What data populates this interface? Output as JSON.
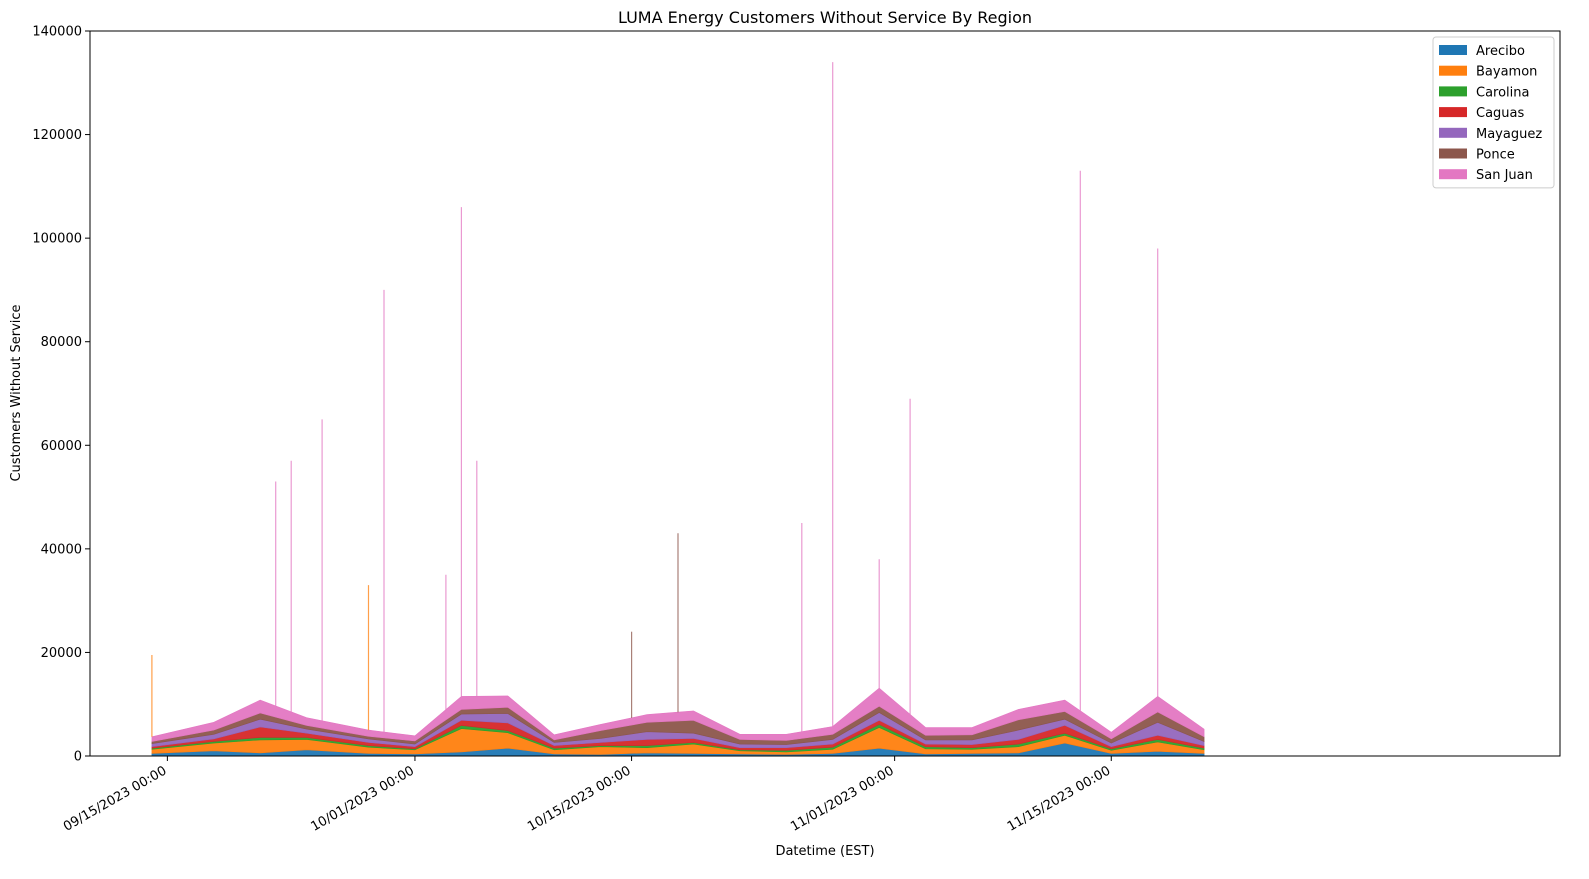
{
  "chart_data": {
    "type": "area",
    "stacked": true,
    "title": "LUMA Energy Customers Without Service By Region",
    "xlabel": "Datetime (EST)",
    "ylabel": "Customers Without Service",
    "ylim": [
      0,
      140000
    ],
    "xlim": [
      "2023-09-10",
      "2023-12-14"
    ],
    "x_tick_labels": [
      "09/15/2023 00:00",
      "10/01/2023 00:00",
      "10/15/2023 00:00",
      "11/01/2023 00:00",
      "11/15/2023 00:00"
    ],
    "x_tick_dates": [
      "2023-09-15",
      "2023-10-01",
      "2023-10-15",
      "2023-11-01",
      "2023-11-15"
    ],
    "y_ticks": [
      0,
      20000,
      40000,
      60000,
      80000,
      100000,
      120000,
      140000
    ],
    "y_tick_labels": [
      "0",
      "20000",
      "40000",
      "60000",
      "80000",
      "100000",
      "120000",
      "140000"
    ],
    "legend_position": "top-right",
    "grid": false,
    "x": [
      "2023-09-14",
      "2023-09-18",
      "2023-09-21",
      "2023-09-24",
      "2023-09-28",
      "2023-10-01",
      "2023-10-04",
      "2023-10-07",
      "2023-10-10",
      "2023-10-13",
      "2023-10-16",
      "2023-10-19",
      "2023-10-22",
      "2023-10-25",
      "2023-10-28",
      "2023-10-31",
      "2023-11-03",
      "2023-11-06",
      "2023-11-09",
      "2023-11-12",
      "2023-11-15",
      "2023-11-18",
      "2023-11-21"
    ],
    "series": [
      {
        "name": "Arecibo",
        "color": "#1f77b4",
        "values": [
          500,
          1000,
          600,
          1200,
          500,
          400,
          800,
          1500,
          400,
          300,
          600,
          500,
          400,
          300,
          500,
          1500,
          400,
          500,
          600,
          2500,
          500,
          900,
          500
        ]
      },
      {
        "name": "Bayamon",
        "color": "#ff7f0e",
        "values": [
          800,
          1500,
          2500,
          2000,
          1200,
          800,
          4500,
          3000,
          800,
          1500,
          1000,
          1800,
          600,
          500,
          800,
          4000,
          1000,
          800,
          1200,
          1500,
          600,
          1800,
          700
        ]
      },
      {
        "name": "Carolina",
        "color": "#2ca02c",
        "values": [
          200,
          300,
          500,
          400,
          300,
          200,
          600,
          400,
          300,
          200,
          400,
          300,
          200,
          300,
          400,
          600,
          400,
          300,
          500,
          400,
          300,
          500,
          300
        ]
      },
      {
        "name": "Caguas",
        "color": "#d62728",
        "values": [
          300,
          500,
          2000,
          800,
          600,
          400,
          1000,
          1500,
          500,
          600,
          1200,
          800,
          400,
          500,
          600,
          800,
          500,
          600,
          900,
          1500,
          400,
          800,
          500
        ]
      },
      {
        "name": "Mayaguez",
        "color": "#9467bd",
        "values": [
          600,
          900,
          1500,
          800,
          700,
          500,
          1200,
          1800,
          600,
          800,
          1500,
          1000,
          700,
          600,
          900,
          1500,
          800,
          900,
          1800,
          1200,
          700,
          2500,
          800
        ]
      },
      {
        "name": "Ponce",
        "color": "#8c564b",
        "values": [
          400,
          800,
          1200,
          700,
          500,
          600,
          900,
          1200,
          500,
          1500,
          1800,
          2500,
          900,
          800,
          1000,
          1200,
          900,
          1000,
          2000,
          1500,
          800,
          2000,
          900
        ]
      },
      {
        "name": "San Juan",
        "color": "#e377c2",
        "values": [
          900,
          1500,
          2500,
          1500,
          1200,
          1000,
          2500,
          2200,
          1000,
          1200,
          1500,
          1800,
          1000,
          1200,
          1500,
          3500,
          1500,
          1400,
          2000,
          2200,
          1300,
          3000,
          1500
        ]
      }
    ],
    "peaks": [
      {
        "date": "2023-09-14",
        "total": 19500,
        "series": "Bayamon"
      },
      {
        "date": "2023-09-22",
        "total": 53000,
        "series": "San Juan"
      },
      {
        "date": "2023-09-23",
        "total": 57000,
        "series": "San Juan"
      },
      {
        "date": "2023-09-25",
        "total": 65000,
        "series": "San Juan"
      },
      {
        "date": "2023-09-28",
        "total": 33000,
        "series": "Bayamon"
      },
      {
        "date": "2023-09-29",
        "total": 90000,
        "series": "San Juan"
      },
      {
        "date": "2023-10-03",
        "total": 35000,
        "series": "San Juan"
      },
      {
        "date": "2023-10-04",
        "total": 106000,
        "series": "San Juan"
      },
      {
        "date": "2023-10-05",
        "total": 57000,
        "series": "San Juan"
      },
      {
        "date": "2023-10-15",
        "total": 24000,
        "series": "Ponce"
      },
      {
        "date": "2023-10-18",
        "total": 43000,
        "series": "Ponce"
      },
      {
        "date": "2023-10-26",
        "total": 45000,
        "series": "San Juan"
      },
      {
        "date": "2023-10-28",
        "total": 134000,
        "series": "San Juan"
      },
      {
        "date": "2023-10-31",
        "total": 38000,
        "series": "San Juan"
      },
      {
        "date": "2023-11-02",
        "total": 69000,
        "series": "San Juan"
      },
      {
        "date": "2023-11-13",
        "total": 113000,
        "series": "San Juan"
      },
      {
        "date": "2023-11-18",
        "total": 98000,
        "series": "San Juan"
      }
    ]
  }
}
